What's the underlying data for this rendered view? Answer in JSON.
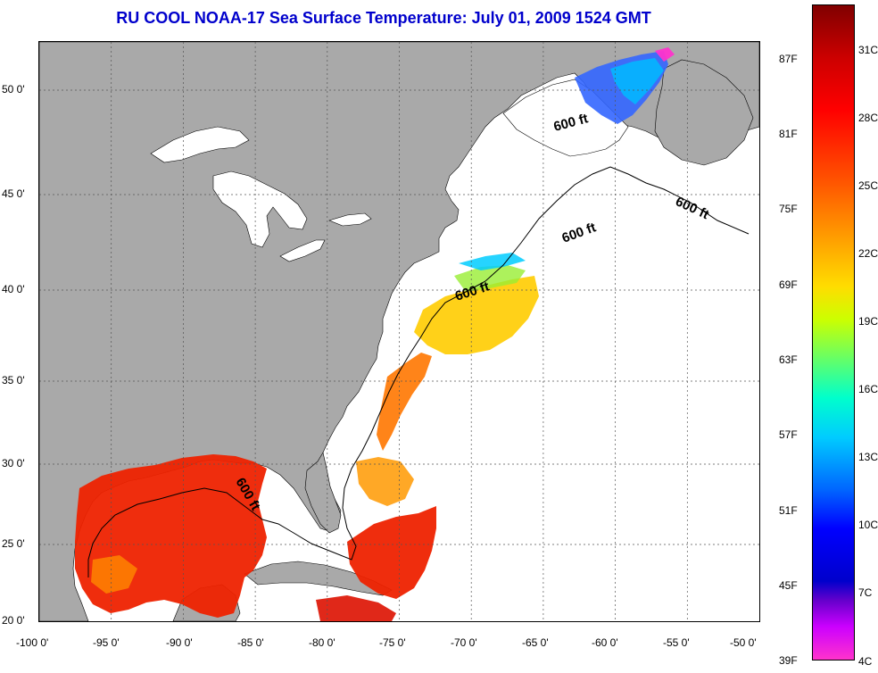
{
  "title": "RU COOL  NOAA-17  Sea Surface Temperature:  July 01, 2009 1524 GMT",
  "map": {
    "lat_labels": [
      "50 0'",
      "45 0'",
      "40 0'",
      "35 0'",
      "30 0'",
      "25 0'",
      "20 0'"
    ],
    "lon_labels": [
      "-100 0'",
      "-95 0'",
      "-90 0'",
      "-85 0'",
      "-80 0'",
      "-75 0'",
      "-70 0'",
      "-65 0'",
      "-60 0'",
      "-55 0'",
      "-50 0'"
    ],
    "depth_contour_labels": [
      "600 ft",
      "600 ft",
      "600 ft",
      "600 ft",
      "600 ft"
    ],
    "colors": {
      "land": "#a9a9a9",
      "cloud": "#ffffff",
      "contour": "#000000",
      "grid": "#666666"
    }
  },
  "colorbar": {
    "fahrenheit_labels": [
      "87F",
      "81F",
      "75F",
      "69F",
      "63F",
      "57F",
      "51F",
      "45F",
      "39F"
    ],
    "celsius_labels": [
      "31C",
      "28C",
      "25C",
      "22C",
      "19C",
      "16C",
      "13C",
      "10C",
      "7C",
      "4C"
    ],
    "min_f": 39,
    "max_f": 92,
    "min_c": 4,
    "max_c": 33
  }
}
